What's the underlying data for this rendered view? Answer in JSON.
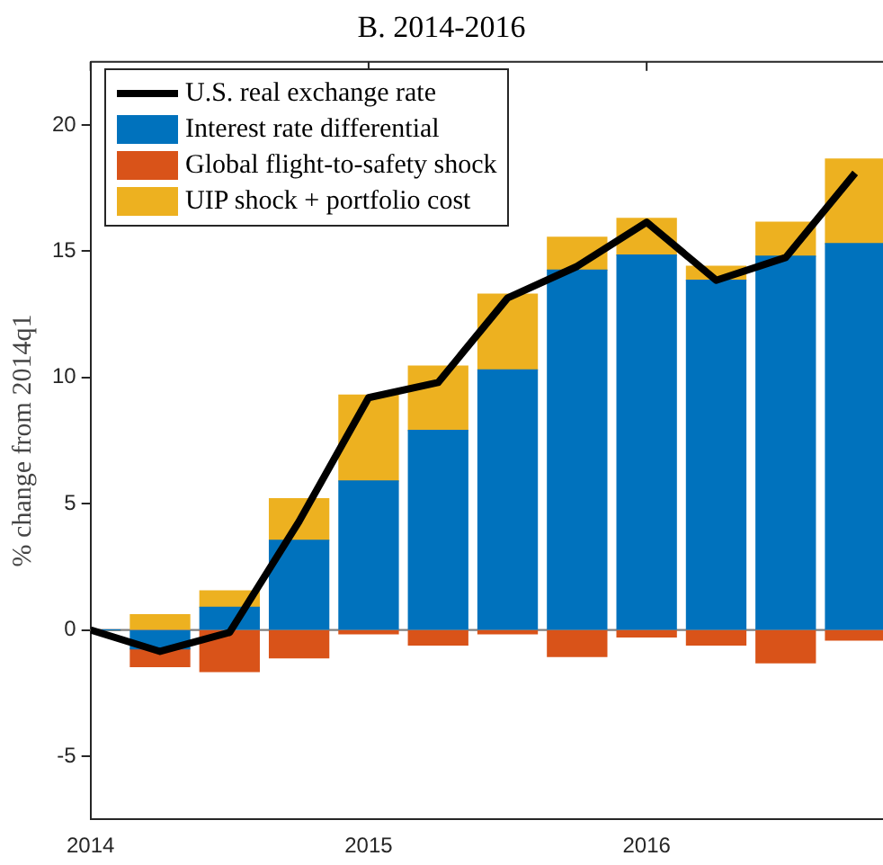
{
  "chart_data": {
    "type": "bar",
    "title": "B. 2014-2016",
    "ylabel": "% change from 2014q1",
    "x": [
      2014,
      2014.25,
      2014.5,
      2014.75,
      2015,
      2015.25,
      2015.5,
      2015.75,
      2016,
      2016.25,
      2016.5,
      2016.75
    ],
    "stacked": true,
    "series": [
      {
        "name": "U.S. real exchange rate",
        "type": "line",
        "color": "#000000",
        "values": [
          0,
          -0.85,
          -0.1,
          4.3,
          9.2,
          9.8,
          13.15,
          14.4,
          16.15,
          13.85,
          14.75,
          18.1
        ]
      },
      {
        "name": "Interest rate differential",
        "color": "#0072bd",
        "values": [
          0,
          -0.75,
          0.9,
          3.55,
          5.9,
          7.9,
          10.3,
          14.25,
          14.85,
          13.85,
          14.8,
          15.3
        ]
      },
      {
        "name": "Global flight-to-safety shock",
        "color": "#d95319",
        "values": [
          0,
          -0.7,
          -1.65,
          -1.1,
          -0.15,
          -0.6,
          -0.15,
          -1.05,
          -0.28,
          -0.6,
          -1.3,
          -0.4
        ]
      },
      {
        "name": "UIP shock + portfolio cost",
        "color": "#edb120",
        "values": [
          0,
          0.6,
          0.65,
          1.65,
          3.4,
          2.55,
          3,
          1.3,
          1.45,
          0.55,
          1.35,
          3.35
        ]
      }
    ],
    "xlim": [
      2014,
      2016.85
    ],
    "xticks": [
      2014,
      2015,
      2016
    ],
    "ylim": [
      -7.5,
      22.5
    ],
    "yticks": [
      -5,
      0,
      5,
      10,
      15,
      20
    ],
    "ref_lines": [
      {
        "axis": "y",
        "value": 0,
        "color": "#808080"
      }
    ],
    "grid": false,
    "legend": "top left"
  }
}
